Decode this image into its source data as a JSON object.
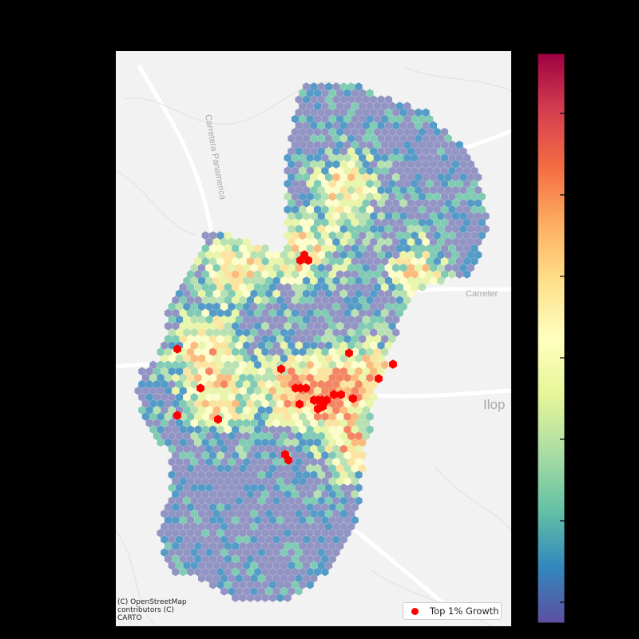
{
  "basemap": {
    "road_labels": [
      "Carretera Panamerica",
      "Carreter",
      "Ilop"
    ],
    "attribution": "(C) OpenStreetMap\ncontributors (C)\nCARTO"
  },
  "legend": {
    "label": "Top 1% Growth",
    "marker_color": "#ff0000"
  },
  "colorbar": {
    "colormap": "Spectral_r",
    "tick_count": 7,
    "tick_labels": []
  },
  "colors": {
    "background": "#000000",
    "basemap": "#f2f2f2",
    "lowest_hex": "#7d7fb8",
    "top_growth": "#ff0000"
  },
  "top_growth_hex_count": 26
}
